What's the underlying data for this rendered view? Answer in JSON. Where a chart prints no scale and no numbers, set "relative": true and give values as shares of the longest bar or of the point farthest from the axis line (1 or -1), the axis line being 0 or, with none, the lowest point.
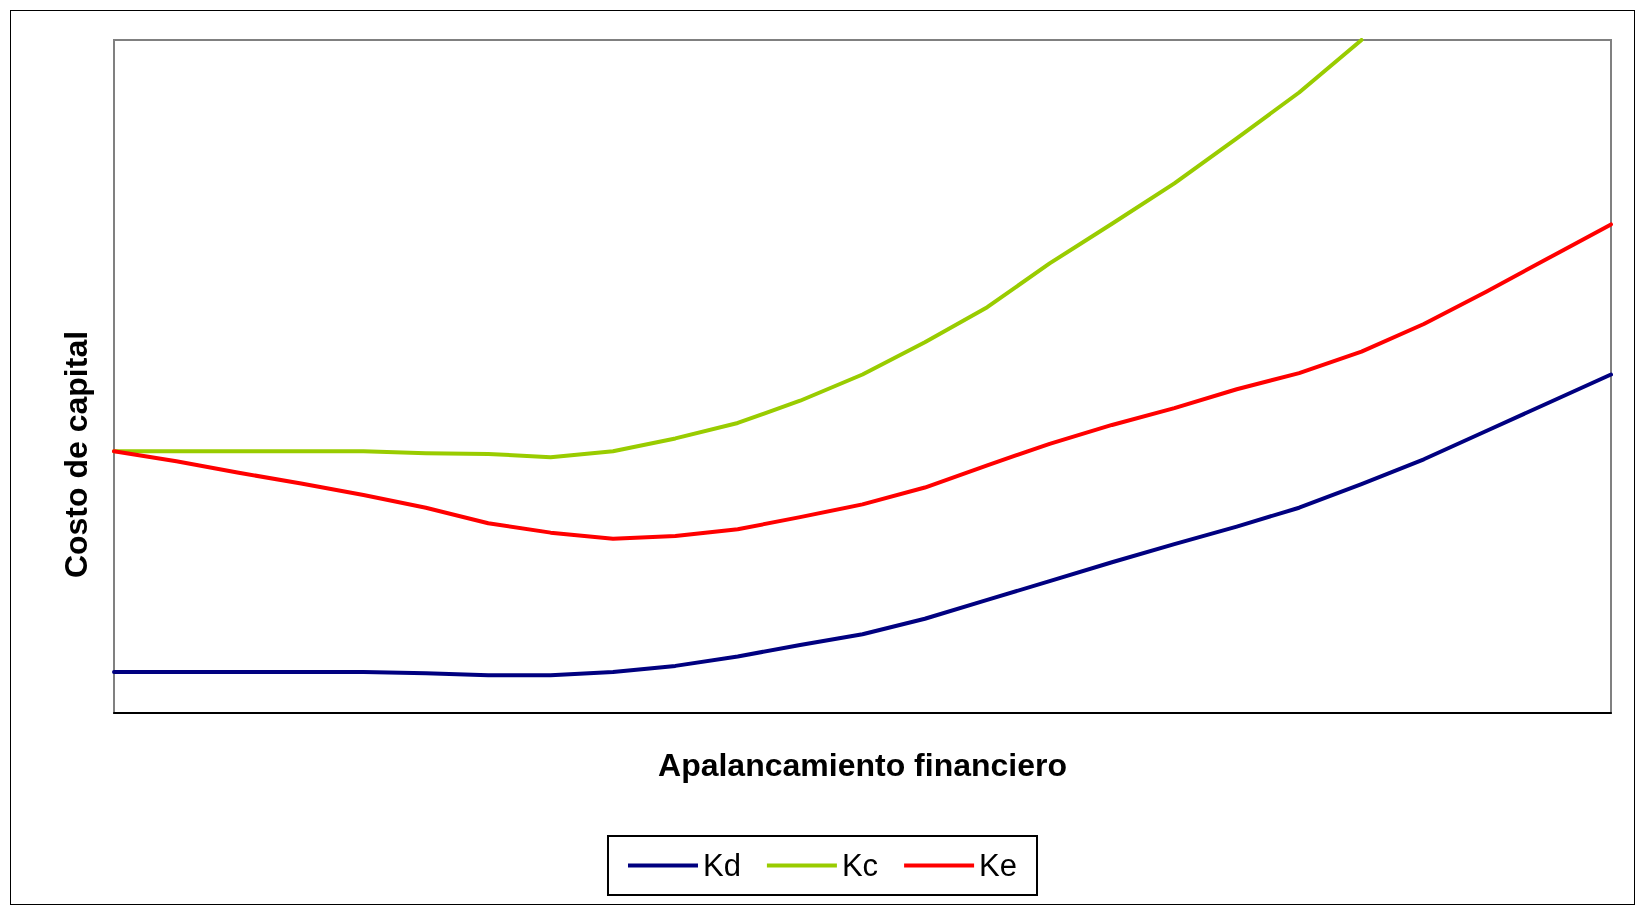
{
  "chart_data": {
    "type": "line",
    "relative": true,
    "xlabel": "Apalancamiento financiero",
    "ylabel": "Costo de capital",
    "legend": "bottom",
    "grid": false,
    "marker": "none",
    "line_style": "solid",
    "categories": [
      null,
      null,
      null,
      null,
      null,
      null,
      null,
      null,
      null,
      null,
      null,
      null,
      null,
      null,
      null,
      null,
      null,
      null,
      null,
      null,
      null,
      null,
      null,
      null,
      null
    ],
    "series": [
      {
        "name": "Kd",
        "color": "#000080",
        "values": [
          0.061,
          0.061,
          0.061,
          0.061,
          0.061,
          0.059,
          0.056,
          0.056,
          0.061,
          0.07,
          0.084,
          0.101,
          0.117,
          0.14,
          0.168,
          0.196,
          0.224,
          0.251,
          0.277,
          0.305,
          0.34,
          0.377,
          0.419,
          0.461,
          0.503
        ]
      },
      {
        "name": "Kc",
        "color": "#99cc00",
        "values": [
          0.389,
          0.389,
          0.389,
          0.389,
          0.389,
          0.386,
          0.385,
          0.38,
          0.389,
          0.408,
          0.431,
          0.464,
          0.503,
          0.551,
          0.603,
          0.668,
          0.727,
          0.787,
          0.854,
          0.922,
          1.0,
          null,
          null,
          null,
          null
        ]
      },
      {
        "name": "Ke",
        "color": "#ff0000",
        "values": [
          0.389,
          0.374,
          0.357,
          0.341,
          0.324,
          0.305,
          0.282,
          0.268,
          0.259,
          0.263,
          0.273,
          0.291,
          0.31,
          0.335,
          0.368,
          0.4,
          0.428,
          0.453,
          0.481,
          0.505,
          0.537,
          0.578,
          0.626,
          0.676,
          0.726
        ]
      }
    ]
  }
}
